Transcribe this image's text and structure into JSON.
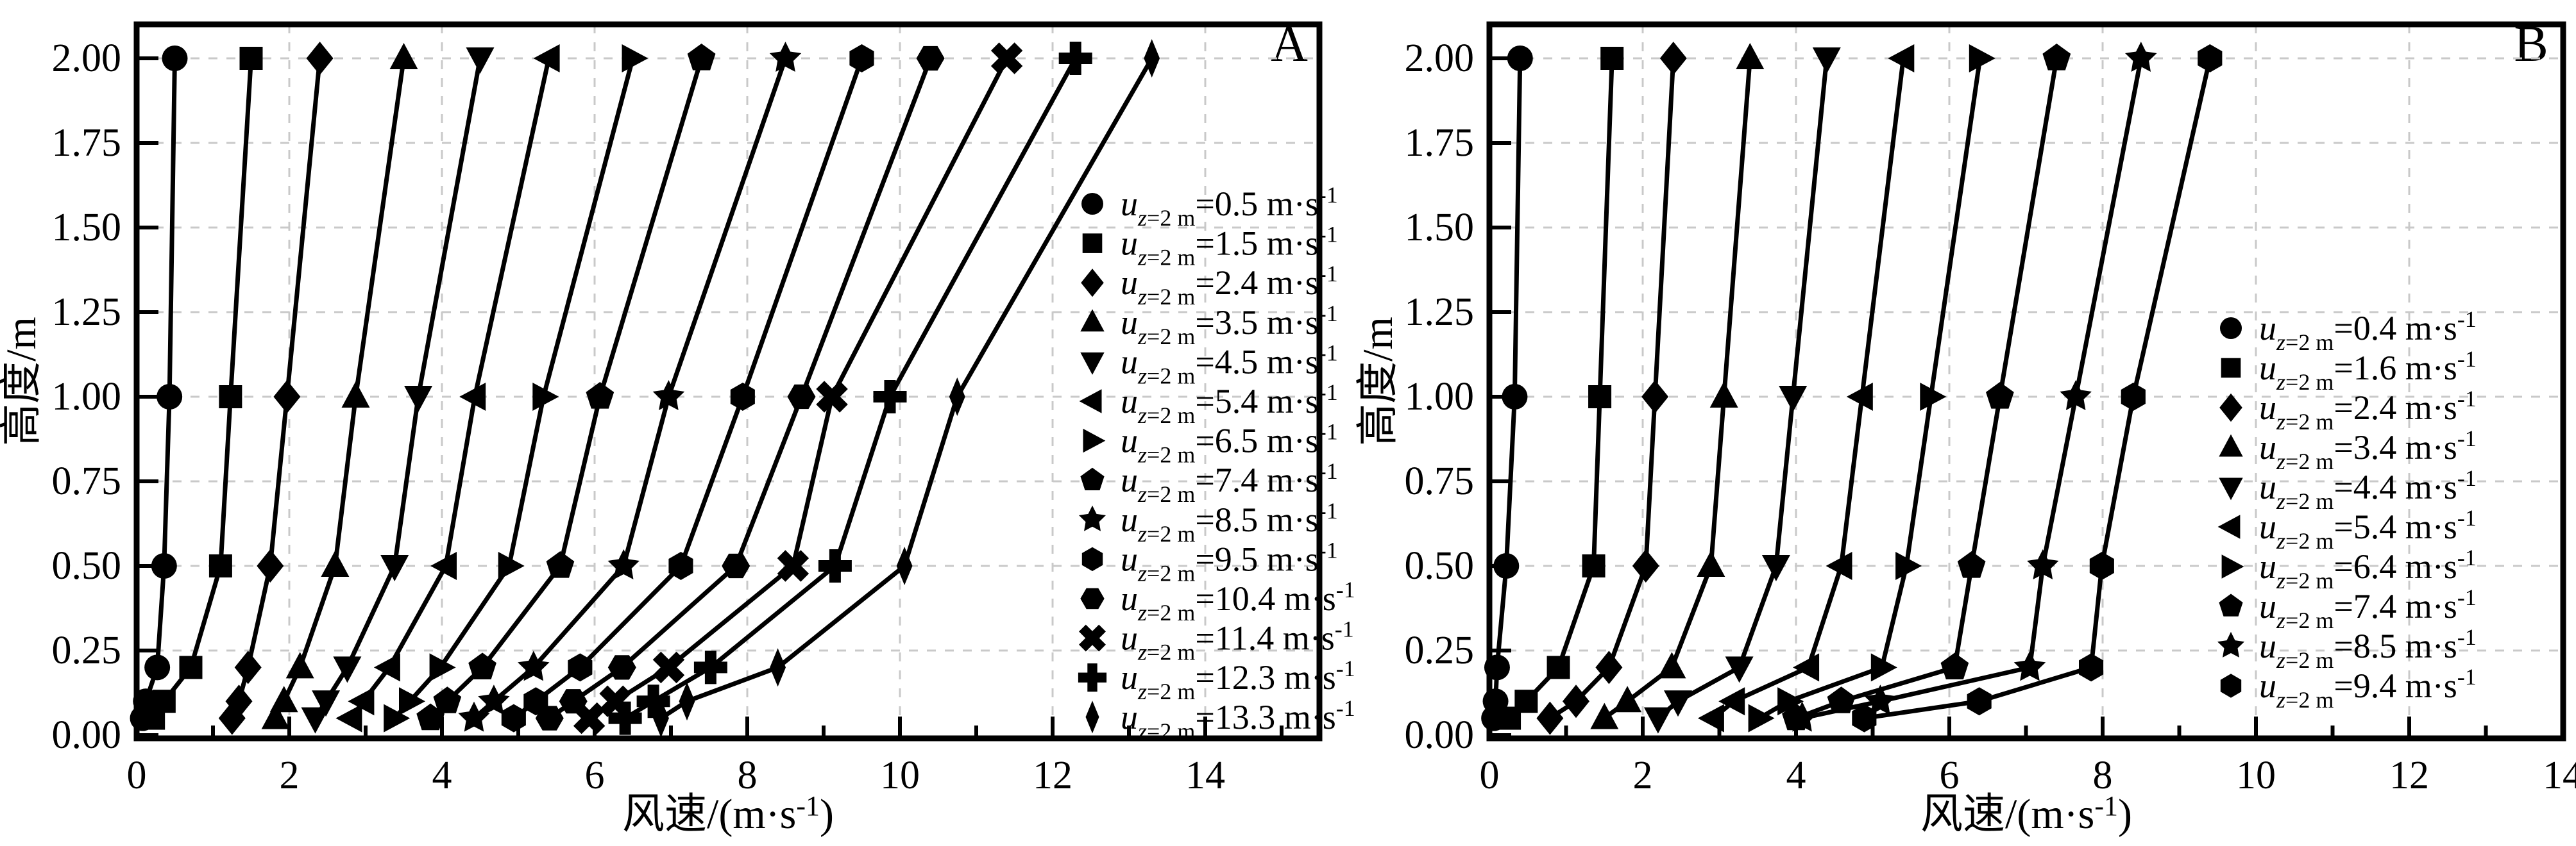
{
  "figure": {
    "background": "#ffffff",
    "line_color": "#000000",
    "grid_color": "#c9c9c9",
    "frame_color": "#000000"
  },
  "chart_data": [
    {
      "panel": "A",
      "type": "line",
      "title": "",
      "xlabel_main": "风速/(m·s",
      "xlabel_sup": "-1",
      "xlabel_end": ")",
      "ylabel": "高度/m",
      "xlim": [
        0,
        15.5
      ],
      "ylim": [
        0,
        2.1
      ],
      "xticks": [
        0,
        2,
        4,
        6,
        8,
        10,
        12,
        14
      ],
      "xtick_labels": [
        "0",
        "2",
        "4",
        "6",
        "8",
        "10",
        "12",
        "14"
      ],
      "yticks": [
        0,
        0.25,
        0.5,
        0.75,
        1.0,
        1.25,
        1.5,
        1.75,
        2.0
      ],
      "ytick_labels": [
        "0.00",
        "0.25",
        "0.50",
        "0.75",
        "1.00",
        "1.25",
        "1.50",
        "1.75",
        "2.00"
      ],
      "grid": "dashed-major",
      "legend_position": "right-middle-inside",
      "legend_prefix_italic": "u",
      "legend_sub_italic": "z",
      "legend_sub_rest": "=2 m",
      "legend_eq": "=",
      "legend_unit": " m·s",
      "legend_sup": "-1",
      "heights": [
        0.05,
        0.1,
        0.2,
        0.5,
        1.0,
        2.0
      ],
      "series": [
        {
          "u2": "0.5",
          "marker": "circle",
          "values": [
            0.08,
            0.12,
            0.27,
            0.36,
            0.43,
            0.5
          ]
        },
        {
          "u2": "1.5",
          "marker": "square",
          "values": [
            0.22,
            0.36,
            0.71,
            1.1,
            1.23,
            1.5
          ]
        },
        {
          "u2": "2.4",
          "marker": "diamond",
          "values": [
            1.25,
            1.34,
            1.46,
            1.75,
            1.97,
            2.4
          ]
        },
        {
          "u2": "3.5",
          "marker": "triangle-up",
          "values": [
            1.82,
            1.93,
            2.14,
            2.6,
            2.87,
            3.5
          ]
        },
        {
          "u2": "4.5",
          "marker": "triangle-down",
          "values": [
            2.34,
            2.48,
            2.76,
            3.38,
            3.69,
            4.5
          ]
        },
        {
          "u2": "5.4",
          "marker": "triangle-left",
          "values": [
            2.81,
            2.97,
            3.31,
            4.05,
            4.43,
            5.4
          ]
        },
        {
          "u2": "6.5",
          "marker": "triangle-right",
          "values": [
            3.38,
            3.58,
            3.98,
            4.88,
            5.33,
            6.5
          ]
        },
        {
          "u2": "7.4",
          "marker": "pentagon",
          "values": [
            3.85,
            4.07,
            4.53,
            5.55,
            6.07,
            7.4
          ]
        },
        {
          "u2": "8.5",
          "marker": "star",
          "values": [
            4.42,
            4.68,
            5.2,
            6.38,
            6.97,
            8.5
          ]
        },
        {
          "u2": "9.5",
          "marker": "hexagon-vertical",
          "values": [
            4.94,
            5.23,
            5.81,
            7.13,
            7.94,
            9.5
          ]
        },
        {
          "u2": "10.4",
          "marker": "hexagon-horizontal",
          "values": [
            5.41,
            5.72,
            6.36,
            7.85,
            8.71,
            10.4
          ]
        },
        {
          "u2": "11.4",
          "marker": "x-cross",
          "values": [
            5.93,
            6.27,
            6.97,
            8.6,
            9.11,
            11.4
          ]
        },
        {
          "u2": "12.3",
          "marker": "plus",
          "values": [
            6.4,
            6.77,
            7.52,
            9.15,
            9.87,
            12.3
          ]
        },
        {
          "u2": "13.3",
          "marker": "thin-diamond",
          "values": [
            6.87,
            7.21,
            8.4,
            10.06,
            10.75,
            13.3
          ]
        }
      ]
    },
    {
      "panel": "B",
      "type": "line",
      "title": "",
      "xlabel_main": "风速/(m·s",
      "xlabel_sup": "-1",
      "xlabel_end": ")",
      "ylabel": "高度/m",
      "xlim": [
        0,
        14
      ],
      "ylim": [
        0,
        2.1
      ],
      "xticks": [
        0,
        2,
        4,
        6,
        8,
        10,
        12,
        14
      ],
      "xtick_labels": [
        "0",
        "2",
        "4",
        "6",
        "8",
        "10",
        "12",
        "14"
      ],
      "yticks": [
        0,
        0.25,
        0.5,
        0.75,
        1.0,
        1.25,
        1.5,
        1.75,
        2.0
      ],
      "ytick_labels": [
        "0.00",
        "0.25",
        "0.50",
        "0.75",
        "1.00",
        "1.25",
        "1.50",
        "1.75",
        "2.00"
      ],
      "grid": "dashed-major",
      "legend_position": "right-middle-inside",
      "legend_prefix_italic": "u",
      "legend_sub_italic": "z",
      "legend_sub_rest": "=2 m",
      "legend_eq": "=",
      "legend_unit": " m·s",
      "legend_sup": "-1",
      "heights": [
        0.05,
        0.1,
        0.2,
        0.5,
        1.0,
        2.0
      ],
      "series": [
        {
          "u2": "0.4",
          "marker": "circle",
          "values": [
            0.06,
            0.08,
            0.1,
            0.22,
            0.33,
            0.4
          ]
        },
        {
          "u2": "1.6",
          "marker": "square",
          "values": [
            0.26,
            0.48,
            0.9,
            1.36,
            1.44,
            1.6
          ]
        },
        {
          "u2": "2.4",
          "marker": "diamond",
          "values": [
            0.79,
            1.13,
            1.56,
            2.04,
            2.16,
            2.4
          ]
        },
        {
          "u2": "3.4",
          "marker": "triangle-up",
          "values": [
            1.5,
            1.8,
            2.38,
            2.89,
            3.06,
            3.4
          ]
        },
        {
          "u2": "4.4",
          "marker": "triangle-down",
          "values": [
            2.2,
            2.46,
            3.26,
            3.74,
            3.96,
            4.4
          ]
        },
        {
          "u2": "5.4",
          "marker": "triangle-left",
          "values": [
            2.92,
            3.19,
            4.16,
            4.59,
            4.86,
            5.4
          ]
        },
        {
          "u2": "6.4",
          "marker": "triangle-right",
          "values": [
            3.52,
            3.9,
            5.12,
            5.44,
            5.76,
            6.4
          ]
        },
        {
          "u2": "7.4",
          "marker": "pentagon",
          "values": [
            4.0,
            4.59,
            6.07,
            6.29,
            6.66,
            7.4
          ]
        },
        {
          "u2": "8.5",
          "marker": "star",
          "values": [
            4.08,
            5.1,
            7.05,
            7.22,
            7.65,
            8.5
          ]
        },
        {
          "u2": "9.4",
          "marker": "hexagon-vertical",
          "values": [
            4.89,
            6.39,
            7.85,
            7.99,
            8.4,
            9.4
          ]
        }
      ]
    }
  ]
}
